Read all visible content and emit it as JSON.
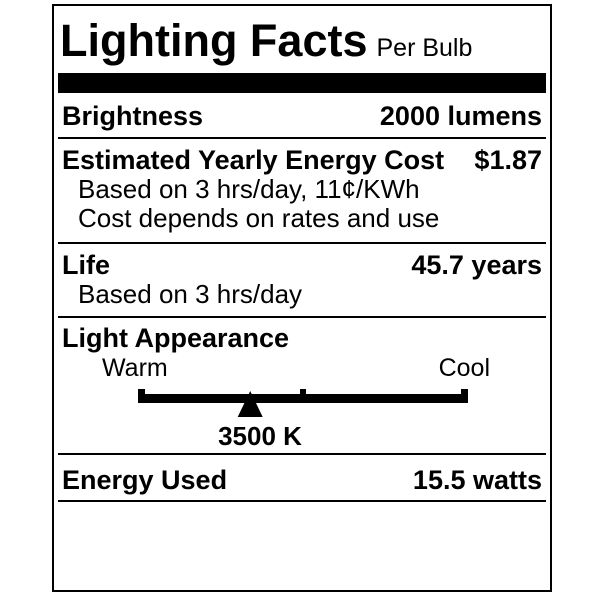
{
  "label": {
    "title": "Lighting Facts",
    "per_unit": "Per Bulb",
    "brightness": {
      "name": "Brightness",
      "value": "2000 lumens"
    },
    "energy_cost": {
      "name": "Estimated Yearly Energy Cost",
      "value": "$1.87",
      "note_basis": "Based on 3 hrs/day, 11¢/KWh",
      "note_disclaimer": "Cost depends on rates and use"
    },
    "life": {
      "name": "Life",
      "value": "45.7 years",
      "note_basis": "Based on 3 hrs/day"
    },
    "light_appearance": {
      "name": "Light Appearance",
      "scale_left": "Warm",
      "scale_right": "Cool",
      "color_temperature": "3500 K",
      "marker_position_pct": 34
    },
    "energy_used": {
      "name": "Energy Used",
      "value": "15.5 watts"
    },
    "colors": {
      "ink": "#000000",
      "paper": "#ffffff"
    }
  }
}
